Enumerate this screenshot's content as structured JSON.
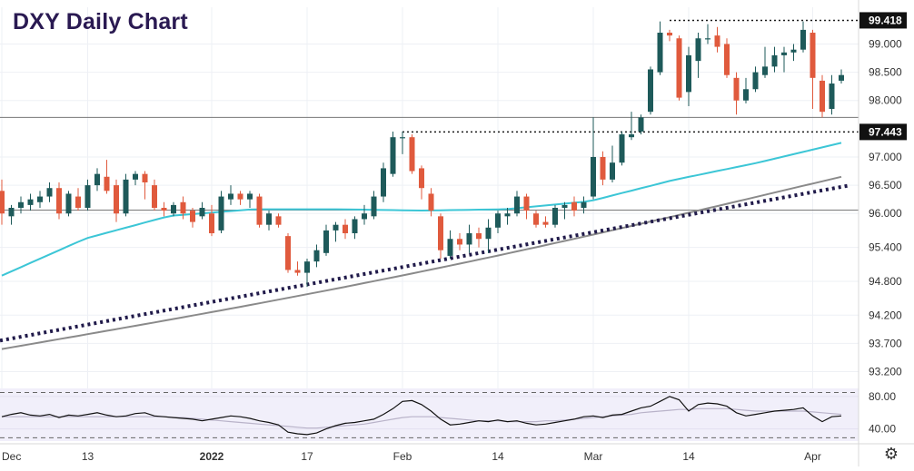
{
  "chart_data": {
    "title": "DXY Daily Chart",
    "type": "candlestick",
    "price_axis": {
      "ticks": [
        "99.000",
        "98.500",
        "98.000",
        "97.000",
        "96.500",
        "96.000",
        "95.400",
        "94.800",
        "94.200",
        "93.700",
        "93.200"
      ],
      "range": [
        93.0,
        99.65
      ]
    },
    "x_ticks": [
      "Dec",
      "13",
      "2022",
      "17",
      "Feb",
      "14",
      "Mar",
      "14",
      "Apr"
    ],
    "levels": [
      {
        "label": "99.418",
        "value": 99.418,
        "style": "dotted"
      },
      {
        "label": "97.443",
        "value": 97.443,
        "style": "dotted"
      }
    ],
    "horizontal_lines": [
      97.7,
      96.06
    ],
    "candles": [
      {
        "date": "Dec 01",
        "open": 96.4,
        "high": 96.6,
        "low": 95.8,
        "close": 96.0
      },
      {
        "date": "Dec 02",
        "open": 95.95,
        "high": 96.15,
        "low": 95.8,
        "close": 96.1
      },
      {
        "date": "Dec 03",
        "open": 96.1,
        "high": 96.3,
        "low": 96.0,
        "close": 96.2
      },
      {
        "date": "Dec 06",
        "open": 96.15,
        "high": 96.35,
        "low": 96.05,
        "close": 96.25
      },
      {
        "date": "Dec 07",
        "open": 96.2,
        "high": 96.4,
        "low": 96.1,
        "close": 96.3
      },
      {
        "date": "Dec 08",
        "open": 96.3,
        "high": 96.55,
        "low": 96.2,
        "close": 96.45
      },
      {
        "date": "Dec 09",
        "open": 96.45,
        "high": 96.55,
        "low": 95.9,
        "close": 96.0
      },
      {
        "date": "Dec 10",
        "open": 96.0,
        "high": 96.4,
        "low": 95.95,
        "close": 96.35
      },
      {
        "date": "Dec 13",
        "open": 96.3,
        "high": 96.45,
        "low": 96.05,
        "close": 96.1
      },
      {
        "date": "Dec 14",
        "open": 96.1,
        "high": 96.6,
        "low": 96.05,
        "close": 96.5
      },
      {
        "date": "Dec 15",
        "open": 96.5,
        "high": 96.8,
        "low": 96.4,
        "close": 96.7
      },
      {
        "date": "Dec 16",
        "open": 96.65,
        "high": 96.95,
        "low": 96.35,
        "close": 96.4
      },
      {
        "date": "Dec 17",
        "open": 96.5,
        "high": 96.6,
        "low": 95.85,
        "close": 96.0
      },
      {
        "date": "Dec 20",
        "open": 96.0,
        "high": 96.7,
        "low": 95.95,
        "close": 96.6
      },
      {
        "date": "Dec 21",
        "open": 96.6,
        "high": 96.75,
        "low": 96.5,
        "close": 96.7
      },
      {
        "date": "Dec 22",
        "open": 96.7,
        "high": 96.75,
        "low": 96.25,
        "close": 96.55
      },
      {
        "date": "Dec 23",
        "open": 96.5,
        "high": 96.6,
        "low": 96.05,
        "close": 96.1
      },
      {
        "date": "Dec 27",
        "open": 96.1,
        "high": 96.2,
        "low": 95.95,
        "close": 96.05
      },
      {
        "date": "Dec 28",
        "open": 96.0,
        "high": 96.2,
        "low": 95.95,
        "close": 96.15
      },
      {
        "date": "Dec 29",
        "open": 96.2,
        "high": 96.3,
        "low": 95.9,
        "close": 96.0
      },
      {
        "date": "Dec 30",
        "open": 96.05,
        "high": 96.1,
        "low": 95.75,
        "close": 95.85
      },
      {
        "date": "Dec 31",
        "open": 95.95,
        "high": 96.2,
        "low": 95.9,
        "close": 96.1
      },
      {
        "date": "Jan 03",
        "open": 96.0,
        "high": 96.15,
        "low": 95.6,
        "close": 95.65
      },
      {
        "date": "Jan 04",
        "open": 95.7,
        "high": 96.4,
        "low": 95.65,
        "close": 96.3
      },
      {
        "date": "Jan 05",
        "open": 96.25,
        "high": 96.5,
        "low": 96.15,
        "close": 96.35
      },
      {
        "date": "Jan 06",
        "open": 96.35,
        "high": 96.4,
        "low": 96.15,
        "close": 96.25
      },
      {
        "date": "Jan 07",
        "open": 96.25,
        "high": 96.4,
        "low": 96.1,
        "close": 96.35
      },
      {
        "date": "Jan 10",
        "open": 96.3,
        "high": 96.35,
        "low": 95.75,
        "close": 95.8
      },
      {
        "date": "Jan 11",
        "open": 95.8,
        "high": 96.05,
        "low": 95.7,
        "close": 96.0
      },
      {
        "date": "Jan 12",
        "open": 95.95,
        "high": 96.0,
        "low": 95.75,
        "close": 95.8
      },
      {
        "date": "Jan 13",
        "open": 95.6,
        "high": 95.65,
        "low": 94.95,
        "close": 95.0
      },
      {
        "date": "Jan 14",
        "open": 95.0,
        "high": 95.15,
        "low": 94.9,
        "close": 94.95
      },
      {
        "date": "Jan 18",
        "open": 94.95,
        "high": 95.2,
        "low": 94.7,
        "close": 95.15
      },
      {
        "date": "Jan 19",
        "open": 95.15,
        "high": 95.45,
        "low": 95.05,
        "close": 95.35
      },
      {
        "date": "Jan 20",
        "open": 95.3,
        "high": 95.8,
        "low": 95.25,
        "close": 95.7
      },
      {
        "date": "Jan 21",
        "open": 95.7,
        "high": 95.85,
        "low": 95.5,
        "close": 95.8
      },
      {
        "date": "Jan 24",
        "open": 95.8,
        "high": 95.9,
        "low": 95.55,
        "close": 95.65
      },
      {
        "date": "Jan 25",
        "open": 95.65,
        "high": 95.95,
        "low": 95.55,
        "close": 95.9
      },
      {
        "date": "Jan 26",
        "open": 95.9,
        "high": 96.15,
        "low": 95.8,
        "close": 96.0
      },
      {
        "date": "Jan 27",
        "open": 95.95,
        "high": 96.4,
        "low": 95.9,
        "close": 96.3
      },
      {
        "date": "Jan 28",
        "open": 96.3,
        "high": 96.9,
        "low": 96.2,
        "close": 96.8
      },
      {
        "date": "Jan 31",
        "open": 96.7,
        "high": 97.45,
        "low": 96.65,
        "close": 97.35
      },
      {
        "date": "Feb 01",
        "open": 97.35,
        "high": 97.45,
        "low": 97.05,
        "close": 97.35
      },
      {
        "date": "Feb 02",
        "open": 97.35,
        "high": 97.4,
        "low": 96.7,
        "close": 96.75
      },
      {
        "date": "Feb 03",
        "open": 96.8,
        "high": 96.85,
        "low": 96.25,
        "close": 96.45
      },
      {
        "date": "Feb 04",
        "open": 96.35,
        "high": 96.45,
        "low": 95.95,
        "close": 96.05
      },
      {
        "date": "Feb 07",
        "open": 95.95,
        "high": 96.0,
        "low": 95.2,
        "close": 95.35
      },
      {
        "date": "Feb 08",
        "open": 95.25,
        "high": 95.7,
        "low": 95.2,
        "close": 95.55
      },
      {
        "date": "Feb 09",
        "open": 95.55,
        "high": 95.65,
        "low": 95.35,
        "close": 95.45
      },
      {
        "date": "Feb 10",
        "open": 95.45,
        "high": 95.8,
        "low": 95.3,
        "close": 95.65
      },
      {
        "date": "Feb 11",
        "open": 95.65,
        "high": 95.75,
        "low": 95.4,
        "close": 95.55
      },
      {
        "date": "Feb 14",
        "open": 95.55,
        "high": 95.9,
        "low": 95.3,
        "close": 95.75
      },
      {
        "date": "Feb 15",
        "open": 95.75,
        "high": 96.05,
        "low": 95.65,
        "close": 96.0
      },
      {
        "date": "Feb 16",
        "open": 95.95,
        "high": 96.1,
        "low": 95.8,
        "close": 96.0
      },
      {
        "date": "Feb 17",
        "open": 96.0,
        "high": 96.4,
        "low": 95.95,
        "close": 96.3
      },
      {
        "date": "Feb 18",
        "open": 96.3,
        "high": 96.35,
        "low": 95.9,
        "close": 96.05
      },
      {
        "date": "Feb 21",
        "open": 96.0,
        "high": 96.05,
        "low": 95.75,
        "close": 95.8
      },
      {
        "date": "Feb 22",
        "open": 95.85,
        "high": 95.95,
        "low": 95.75,
        "close": 95.8
      },
      {
        "date": "Feb 23",
        "open": 95.8,
        "high": 96.15,
        "low": 95.75,
        "close": 96.1
      },
      {
        "date": "Feb 24",
        "open": 96.1,
        "high": 96.2,
        "low": 95.9,
        "close": 96.15
      },
      {
        "date": "Feb 25",
        "open": 96.2,
        "high": 96.3,
        "low": 95.95,
        "close": 96.05
      },
      {
        "date": "Feb 28",
        "open": 96.1,
        "high": 96.3,
        "low": 96.0,
        "close": 96.2
      },
      {
        "date": "Mar 01",
        "open": 96.3,
        "high": 97.7,
        "low": 96.25,
        "close": 97.0
      },
      {
        "date": "Mar 02",
        "open": 97.0,
        "high": 97.1,
        "low": 96.5,
        "close": 96.6
      },
      {
        "date": "Mar 03",
        "open": 96.6,
        "high": 97.2,
        "low": 96.55,
        "close": 96.9
      },
      {
        "date": "Mar 04",
        "open": 96.9,
        "high": 97.45,
        "low": 96.85,
        "close": 97.4
      },
      {
        "date": "Mar 07",
        "open": 97.35,
        "high": 97.8,
        "low": 97.3,
        "close": 97.4
      },
      {
        "date": "Mar 08",
        "open": 97.45,
        "high": 97.75,
        "low": 97.4,
        "close": 97.7
      },
      {
        "date": "Mar 09",
        "open": 97.8,
        "high": 98.6,
        "low": 97.75,
        "close": 98.55
      },
      {
        "date": "Mar 10",
        "open": 98.5,
        "high": 99.4,
        "low": 98.45,
        "close": 99.2
      },
      {
        "date": "Mar 11",
        "open": 99.2,
        "high": 99.25,
        "low": 99.05,
        "close": 99.15
      },
      {
        "date": "Mar 14",
        "open": 99.1,
        "high": 99.15,
        "low": 98.0,
        "close": 98.05
      },
      {
        "date": "Mar 15",
        "open": 98.15,
        "high": 98.95,
        "low": 97.9,
        "close": 98.8
      },
      {
        "date": "Mar 16",
        "open": 98.7,
        "high": 99.2,
        "low": 98.4,
        "close": 99.1
      },
      {
        "date": "Mar 17",
        "open": 99.1,
        "high": 99.35,
        "low": 99.0,
        "close": 99.1
      },
      {
        "date": "Mar 18",
        "open": 99.15,
        "high": 99.3,
        "low": 98.85,
        "close": 98.95
      },
      {
        "date": "Mar 21",
        "open": 99.0,
        "high": 99.1,
        "low": 98.4,
        "close": 98.45
      },
      {
        "date": "Mar 22",
        "open": 98.4,
        "high": 98.5,
        "low": 97.75,
        "close": 98.0
      },
      {
        "date": "Mar 23",
        "open": 98.0,
        "high": 98.4,
        "low": 97.95,
        "close": 98.2
      },
      {
        "date": "Mar 24",
        "open": 98.2,
        "high": 98.6,
        "low": 98.15,
        "close": 98.5
      },
      {
        "date": "Mar 25",
        "open": 98.45,
        "high": 98.95,
        "low": 98.4,
        "close": 98.6
      },
      {
        "date": "Mar 28",
        "open": 98.6,
        "high": 98.95,
        "low": 98.5,
        "close": 98.8
      },
      {
        "date": "Mar 29",
        "open": 98.8,
        "high": 98.95,
        "low": 98.5,
        "close": 98.85
      },
      {
        "date": "Mar 30",
        "open": 98.85,
        "high": 99.0,
        "low": 98.7,
        "close": 98.9
      },
      {
        "date": "Mar 31",
        "open": 98.9,
        "high": 99.4,
        "low": 98.85,
        "close": 99.25
      },
      {
        "date": "Apr 01",
        "open": 99.2,
        "high": 99.25,
        "low": 97.85,
        "close": 98.4
      },
      {
        "date": "Apr 04",
        "open": 98.35,
        "high": 98.45,
        "low": 97.7,
        "close": 97.8
      },
      {
        "date": "Apr 05",
        "open": 97.85,
        "high": 98.45,
        "low": 97.75,
        "close": 98.3
      },
      {
        "date": "Apr 06",
        "open": 98.35,
        "high": 98.55,
        "low": 98.3,
        "close": 98.45
      }
    ],
    "moving_averages": [
      {
        "color": "#3cc6d6",
        "start": 94.9,
        "end": 97.25
      },
      {
        "color": "#8a8a8a",
        "start": 93.6,
        "end": 96.65
      }
    ],
    "trendline": {
      "color": "#201a4a",
      "style": "dotted",
      "start": 93.75,
      "end": 96.5
    },
    "oscillator": {
      "ticks": [
        "80.00",
        "40.00"
      ],
      "values": [
        55,
        58,
        60,
        57,
        56,
        58,
        54,
        57,
        56,
        58,
        60,
        57,
        55,
        56,
        59,
        60,
        56,
        55,
        54,
        53,
        52,
        50,
        52,
        54,
        56,
        55,
        53,
        50,
        48,
        45,
        36,
        34,
        33,
        35,
        40,
        44,
        47,
        48,
        50,
        52,
        58,
        65,
        74,
        75,
        70,
        62,
        52,
        45,
        46,
        48,
        50,
        49,
        51,
        49,
        50,
        47,
        45,
        46,
        48,
        50,
        52,
        55,
        56,
        54,
        57,
        58,
        62,
        66,
        68,
        74,
        80,
        76,
        62,
        70,
        72,
        71,
        68,
        60,
        56,
        58,
        60,
        62,
        63,
        64,
        66,
        56,
        49,
        55,
        56
      ],
      "signal": [
        55,
        55,
        55,
        55,
        55,
        55,
        55,
        55,
        55,
        55,
        55,
        55,
        55,
        55,
        55,
        55,
        55,
        55,
        54,
        54,
        53,
        52,
        51,
        50,
        49,
        48,
        47,
        46,
        45,
        44,
        43,
        42,
        41,
        41,
        42,
        43,
        44,
        45,
        46,
        48,
        50,
        52,
        54,
        55,
        55,
        55,
        54,
        53,
        52,
        51,
        50,
        50,
        50,
        49,
        49,
        49,
        49,
        50,
        50,
        51,
        52,
        53,
        54,
        55,
        56,
        57,
        58,
        60,
        61,
        62,
        63,
        64,
        64,
        65,
        65,
        65,
        65,
        64,
        63,
        62,
        62,
        62,
        62,
        62,
        62,
        61,
        60,
        59,
        58
      ],
      "range": [
        25,
        90
      ],
      "bands": [
        85,
        29
      ]
    },
    "colors": {
      "up": "#1e5a5a",
      "down": "#e05a3d"
    }
  }
}
